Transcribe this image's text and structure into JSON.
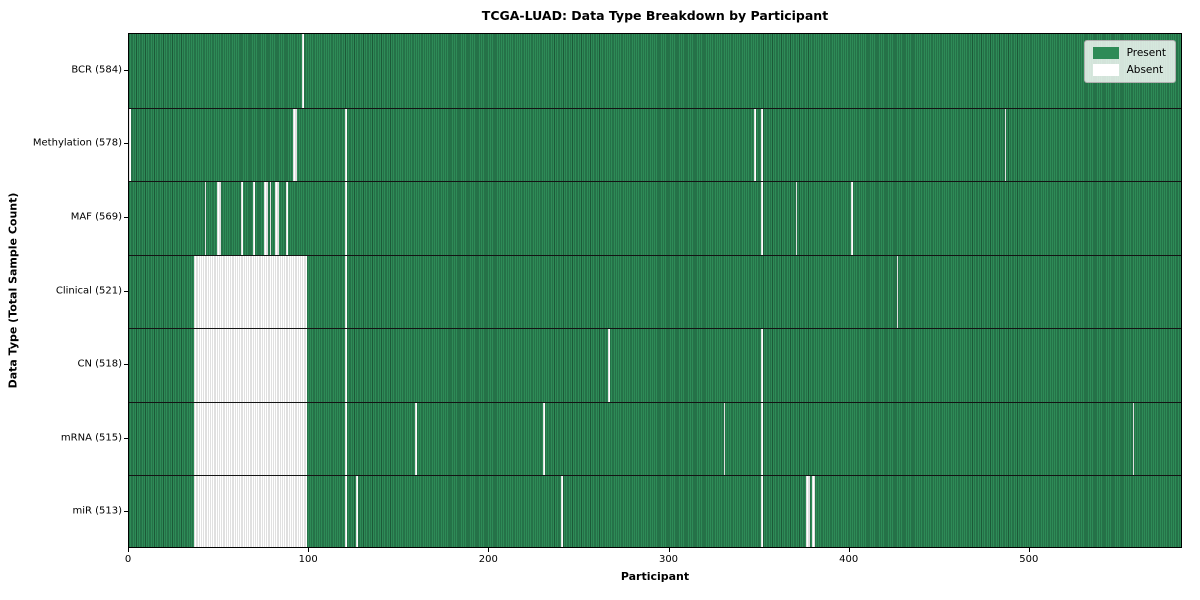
{
  "title": "TCGA-LUAD: Data Type Breakdown by Participant",
  "axes": {
    "xlabel": "Participant",
    "ylabel": "Data Type (Total Sample Count)"
  },
  "legend": {
    "present_label": "Present",
    "absent_label": "Absent"
  },
  "colors": {
    "present": "#2e8b57",
    "present_edge": "#1c5a38",
    "absent": "#ffffff",
    "absent_edge": "#c2c2c2",
    "separator": "#141414",
    "legend_bg": "#e9ece9",
    "legend_border": "#b0b0b0"
  },
  "chart_data": {
    "type": "heatmap",
    "title": "TCGA-LUAD: Data Type Breakdown by Participant",
    "xlabel": "Participant",
    "ylabel": "Data Type (Total Sample Count)",
    "legend": [
      "Present",
      "Absent"
    ],
    "legend_position": "upper right",
    "grid": false,
    "x_range": [
      0,
      585
    ],
    "x_ticks": [
      0,
      100,
      200,
      300,
      400,
      500
    ],
    "value_encoding": {
      "present": 1,
      "absent": 0
    },
    "rows": [
      {
        "name": "BCR",
        "label": "BCR (584)",
        "present_count": 584,
        "absent_ranges": [
          [
            96,
            97
          ]
        ]
      },
      {
        "name": "Methylation",
        "label": "Methylation (578)",
        "present_count": 578,
        "absent_ranges": [
          [
            0,
            1
          ],
          [
            91,
            93
          ],
          [
            120,
            121
          ],
          [
            347,
            348
          ],
          [
            351,
            352
          ],
          [
            486,
            487
          ]
        ]
      },
      {
        "name": "MAF",
        "label": "MAF (569)",
        "present_count": 569,
        "absent_ranges": [
          [
            42,
            43
          ],
          [
            49,
            51
          ],
          [
            62,
            63
          ],
          [
            69,
            70
          ],
          [
            75,
            77
          ],
          [
            78,
            79
          ],
          [
            81,
            83
          ],
          [
            87,
            88
          ],
          [
            120,
            121
          ],
          [
            351,
            352
          ],
          [
            370,
            371
          ],
          [
            401,
            402
          ]
        ]
      },
      {
        "name": "Clinical",
        "label": "Clinical (521)",
        "present_count": 521,
        "absent_ranges": [
          [
            36,
            99
          ],
          [
            120,
            121
          ],
          [
            426,
            427
          ]
        ]
      },
      {
        "name": "CN",
        "label": "CN (518)",
        "present_count": 518,
        "absent_ranges": [
          [
            36,
            99
          ],
          [
            120,
            121
          ],
          [
            266,
            267
          ],
          [
            351,
            352
          ]
        ]
      },
      {
        "name": "mRNA",
        "label": "mRNA (515)",
        "present_count": 515,
        "absent_ranges": [
          [
            36,
            99
          ],
          [
            120,
            121
          ],
          [
            159,
            160
          ],
          [
            230,
            231
          ],
          [
            330,
            331
          ],
          [
            351,
            352
          ],
          [
            557,
            558
          ]
        ]
      },
      {
        "name": "miR",
        "label": "miR (513)",
        "present_count": 513,
        "absent_ranges": [
          [
            36,
            99
          ],
          [
            120,
            121
          ],
          [
            126,
            127
          ],
          [
            240,
            241
          ],
          [
            351,
            352
          ],
          [
            376,
            378
          ],
          [
            379,
            381
          ]
        ]
      }
    ]
  }
}
